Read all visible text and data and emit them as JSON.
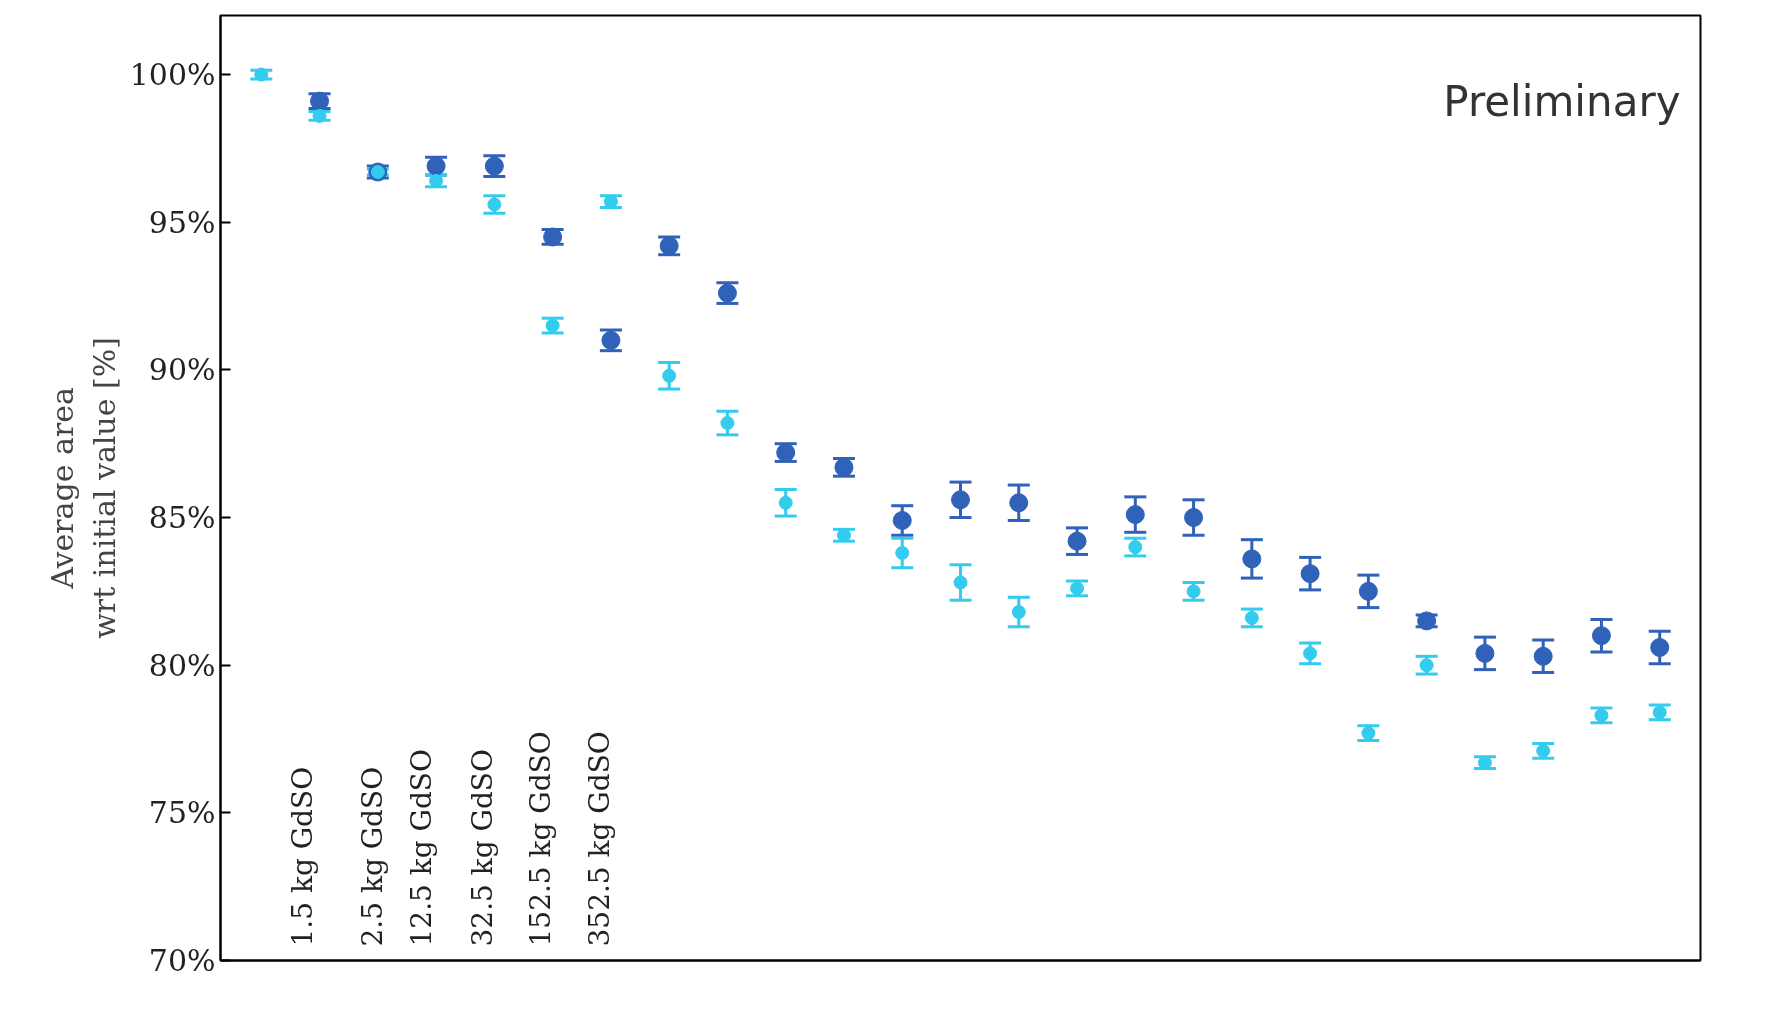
{
  "chart_data": {
    "type": "scatter",
    "ylabel": "Average area\nwrt initial value [%]",
    "annotations": [
      "Preliminary",
      "1.5 kg GdSO",
      "2.5 kg GdSO",
      "12.5 kg GdSO",
      "32.5 kg GdSO",
      "152.5 kg GdSO",
      "352.5 kg GdSO"
    ],
    "categories": [
      null,
      null,
      null,
      null,
      null,
      null,
      null,
      null,
      null,
      null,
      null,
      null,
      null,
      null,
      null,
      null,
      null,
      null,
      null,
      null,
      null,
      null,
      null,
      null,
      null
    ],
    "ylim": [
      70,
      102
    ],
    "yticks": [
      {
        "value": 70,
        "label": "70%"
      },
      {
        "value": 75,
        "label": "75%"
      },
      {
        "value": 80,
        "label": "80%"
      },
      {
        "value": 85,
        "label": "85%"
      },
      {
        "value": 90,
        "label": "90%"
      },
      {
        "value": 95,
        "label": "95%"
      },
      {
        "value": 100,
        "label": "100%"
      }
    ],
    "marker": "circle",
    "series": [
      {
        "color": "#2f62b8",
        "values": [
          null,
          99.1,
          96.7,
          96.9,
          96.9,
          94.5,
          91.0,
          94.2,
          92.6,
          87.2,
          86.7,
          84.9,
          85.6,
          85.5,
          84.2,
          85.1,
          85.0,
          83.6,
          83.1,
          82.5,
          81.5,
          80.4,
          80.3,
          81.0,
          80.6
        ],
        "errors": [
          null,
          0.25,
          0.2,
          0.3,
          0.35,
          0.25,
          0.35,
          0.3,
          0.35,
          0.3,
          0.3,
          0.5,
          0.6,
          0.6,
          0.45,
          0.6,
          0.6,
          0.65,
          0.55,
          0.55,
          0.2,
          0.55,
          0.55,
          0.55,
          0.55
        ]
      },
      {
        "color": "#33ccee",
        "values": [
          100,
          98.6,
          96.7,
          96.4,
          95.6,
          91.5,
          95.7,
          89.8,
          88.2,
          85.5,
          84.4,
          83.8,
          82.8,
          81.8,
          82.6,
          84.0,
          82.5,
          81.6,
          80.4,
          77.7,
          80.0,
          76.7,
          77.1,
          78.3,
          78.4
        ],
        "errors": [
          0.15,
          0.15,
          0.1,
          0.2,
          0.3,
          0.25,
          0.2,
          0.45,
          0.4,
          0.45,
          0.2,
          0.5,
          0.6,
          0.5,
          0.25,
          0.3,
          0.3,
          0.3,
          0.35,
          0.25,
          0.3,
          0.2,
          0.25,
          0.25,
          0.25
        ]
      }
    ]
  }
}
